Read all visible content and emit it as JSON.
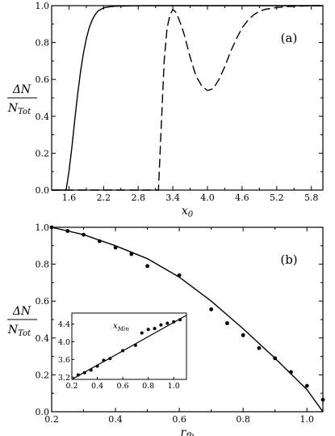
{
  "chart_data": [
    {
      "id": "a",
      "type": "line",
      "panel_label": "(a)",
      "ylabel": {
        "numerator": "ΔN",
        "denominator_base": "N",
        "denominator_sub": "Tot"
      },
      "xlabel": {
        "base": "x",
        "sub": "0"
      },
      "xlim": [
        1.3,
        6.0
      ],
      "ylim": [
        0.0,
        1.0
      ],
      "xticks": [
        "1.6",
        "2.2",
        "2.8",
        "3.4",
        "4.0",
        "4.6",
        "5.2",
        "5.8"
      ],
      "yticks": [
        "0.0",
        "0.2",
        "0.4",
        "0.6",
        "0.8",
        "1.0"
      ],
      "series": [
        {
          "style": "solid",
          "x": [
            1.3,
            1.55,
            1.6,
            1.65,
            1.7,
            1.75,
            1.8,
            1.85,
            1.9,
            1.95,
            2.0,
            2.05,
            2.1,
            2.15,
            2.2,
            2.3,
            2.4,
            2.5,
            2.7,
            3.0,
            4.0,
            5.0,
            6.0
          ],
          "y": [
            0.0,
            0.0,
            0.1,
            0.23,
            0.38,
            0.52,
            0.64,
            0.74,
            0.82,
            0.88,
            0.92,
            0.95,
            0.97,
            0.98,
            0.988,
            0.994,
            0.997,
            0.998,
            0.999,
            1.0,
            1.0,
            1.0,
            1.0
          ]
        },
        {
          "style": "dashed",
          "x": [
            1.3,
            3.1,
            3.15,
            3.2,
            3.25,
            3.3,
            3.35,
            3.4,
            3.45,
            3.5,
            3.55,
            3.6,
            3.7,
            3.8,
            3.9,
            4.0,
            4.1,
            4.2,
            4.3,
            4.4,
            4.5,
            4.6,
            4.7,
            4.8,
            4.9,
            5.0,
            5.2,
            5.4,
            5.6,
            5.8,
            6.0
          ],
          "y": [
            0.0,
            0.0,
            0.0,
            0.35,
            0.7,
            0.88,
            0.95,
            0.98,
            0.965,
            0.93,
            0.89,
            0.84,
            0.72,
            0.62,
            0.565,
            0.54,
            0.55,
            0.6,
            0.67,
            0.75,
            0.82,
            0.88,
            0.92,
            0.95,
            0.97,
            0.98,
            0.99,
            0.995,
            0.998,
            1.0,
            1.0
          ]
        }
      ]
    },
    {
      "id": "b",
      "type": "scatter",
      "panel_label": "(b)",
      "ylabel": {
        "numerator": "ΔN",
        "denominator_base": "N",
        "denominator_sub": "Tot"
      },
      "xlabel": {
        "base": "r",
        "sub": "fb"
      },
      "xlim": [
        0.2,
        1.05
      ],
      "ylim": [
        0.0,
        1.0
      ],
      "xticks": [
        "0.2",
        "0.4",
        "0.6",
        "0.8",
        "1.0"
      ],
      "yticks": [
        "0.0",
        "0.2",
        "0.4",
        "0.6",
        "0.8",
        "1.0"
      ],
      "points": {
        "x": [
          0.2,
          0.25,
          0.3,
          0.35,
          0.4,
          0.45,
          0.5,
          0.6,
          0.7,
          0.75,
          0.8,
          0.85,
          0.9,
          0.95,
          1.0,
          1.05
        ],
        "y": [
          1.0,
          0.98,
          0.96,
          0.925,
          0.89,
          0.855,
          0.79,
          0.74,
          0.555,
          0.48,
          0.415,
          0.345,
          0.29,
          0.215,
          0.14,
          0.065
        ]
      },
      "fit_curve": {
        "x": [
          0.2,
          0.3,
          0.4,
          0.5,
          0.6,
          0.7,
          0.8,
          0.9,
          1.0,
          1.05
        ],
        "y": [
          1.0,
          0.96,
          0.9,
          0.83,
          0.73,
          0.6,
          0.45,
          0.29,
          0.12,
          0.0
        ]
      },
      "inset": {
        "title": {
          "base": "x",
          "sub": "Min"
        },
        "xlim": [
          0.2,
          1.1
        ],
        "ylim": [
          3.15,
          4.65
        ],
        "xticks": [
          "0.2",
          "0.4",
          "0.6",
          "0.8",
          "1.0"
        ],
        "yticks": [
          "3.2",
          "3.6",
          "4.0",
          "4.4"
        ],
        "points": {
          "x": [
            0.25,
            0.3,
            0.35,
            0.4,
            0.45,
            0.5,
            0.6,
            0.7,
            0.75,
            0.8,
            0.85,
            0.9,
            0.95,
            1.0,
            1.05
          ],
          "y": [
            3.25,
            3.3,
            3.36,
            3.45,
            3.58,
            3.62,
            3.8,
            3.92,
            4.2,
            4.28,
            4.3,
            4.38,
            4.42,
            4.45,
            4.5
          ]
        },
        "fit_line": {
          "x": [
            0.2,
            1.1
          ],
          "y": [
            3.15,
            4.6
          ]
        }
      }
    }
  ]
}
